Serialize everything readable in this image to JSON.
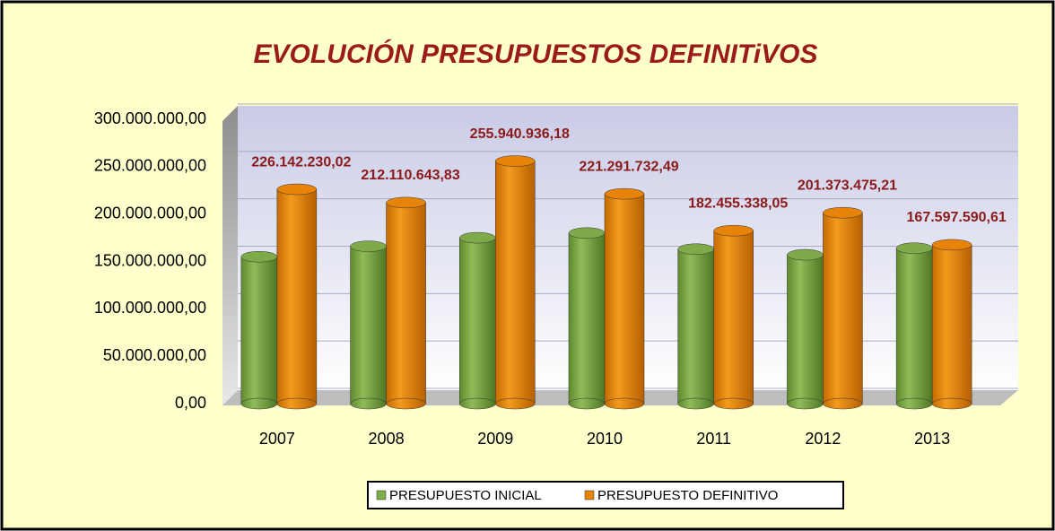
{
  "chart_data": {
    "type": "bar",
    "title": "EVOLUCIÓN PRESUPUESTOS DEFINITiVOS",
    "categories": [
      "2007",
      "2008",
      "2009",
      "2010",
      "2011",
      "2012",
      "2013"
    ],
    "series": [
      {
        "name": "PRESUPUESTO INICIAL",
        "color": "#7faa4a",
        "values": [
          155000000,
          166000000,
          175000000,
          180000000,
          163000000,
          157000000,
          164000000
        ]
      },
      {
        "name": "PRESUPUESTO DEFINITIVO",
        "color": "#e8830a",
        "values": [
          226142230.02,
          212110643.83,
          255940936.18,
          221291732.49,
          182455338.05,
          201373475.21,
          167597590.61
        ],
        "value_labels": [
          "226.142.230,02",
          "212.110.643,83",
          "255.940.936,18",
          "221.291.732,49",
          "182.455.338,05",
          "201.373.475,21",
          "167.597.590,61"
        ]
      }
    ],
    "ylim": [
      0,
      300000000
    ],
    "yticks": [
      {
        "value": 0,
        "label": "0,00"
      },
      {
        "value": 50000000,
        "label": "50.000.000,00"
      },
      {
        "value": 100000000,
        "label": "100.000.000,00"
      },
      {
        "value": 150000000,
        "label": "150.000.000,00"
      },
      {
        "value": 200000000,
        "label": "200.000.000,00"
      },
      {
        "value": 250000000,
        "label": "250.000.000,00"
      },
      {
        "value": 300000000,
        "label": "300.000.000,00"
      }
    ],
    "grid": true
  }
}
